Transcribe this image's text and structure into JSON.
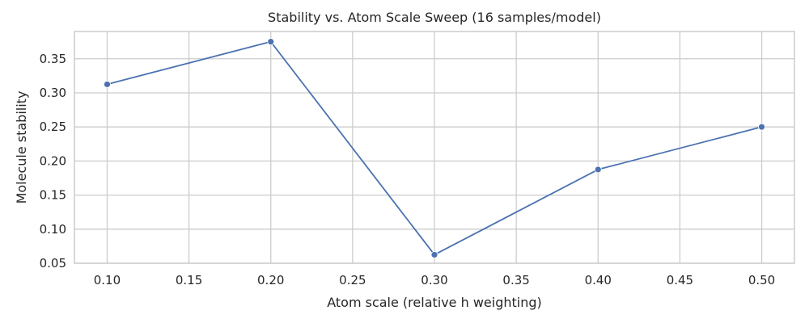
{
  "chart_data": {
    "type": "line",
    "title": "Stability vs. Atom Scale Sweep (16 samples/model)",
    "xlabel": "Atom scale (relative h weighting)",
    "ylabel": "Molecule stability",
    "xlim": [
      0.08,
      0.52
    ],
    "ylim": [
      0.05,
      0.39
    ],
    "xticks": [
      0.1,
      0.15,
      0.2,
      0.25,
      0.3,
      0.35,
      0.4,
      0.45,
      0.5
    ],
    "xtick_labels": [
      "0.10",
      "0.15",
      "0.20",
      "0.25",
      "0.30",
      "0.35",
      "0.40",
      "0.45",
      "0.50"
    ],
    "yticks": [
      0.05,
      0.1,
      0.15,
      0.2,
      0.25,
      0.3,
      0.35
    ],
    "ytick_labels": [
      "0.05",
      "0.10",
      "0.15",
      "0.20",
      "0.25",
      "0.30",
      "0.35"
    ],
    "grid": true,
    "series": [
      {
        "color": "#4c72b0",
        "x": [
          0.1,
          0.2,
          0.3,
          0.4,
          0.5
        ],
        "y": [
          0.3125,
          0.375,
          0.0625,
          0.1875,
          0.25
        ]
      }
    ]
  }
}
